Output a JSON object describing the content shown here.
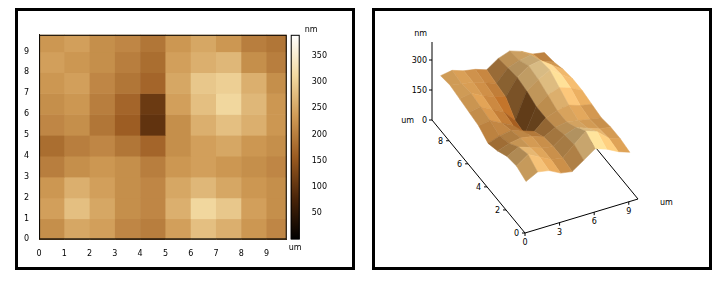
{
  "chart_data": [
    {
      "type": "heatmap",
      "x": [
        0.5,
        1.5,
        2.5,
        3.5,
        4.5,
        5.5,
        6.5,
        7.5,
        8.5,
        9.5
      ],
      "y": [
        0.5,
        1.5,
        2.5,
        3.5,
        4.5,
        5.5,
        6.5,
        7.5,
        8.5,
        9.5
      ],
      "z": [
        [
          220,
          250,
          240,
          210,
          200,
          240,
          280,
          260,
          230,
          210
        ],
        [
          240,
          280,
          250,
          220,
          210,
          260,
          310,
          290,
          240,
          220
        ],
        [
          230,
          260,
          240,
          220,
          210,
          250,
          270,
          250,
          230,
          220
        ],
        [
          200,
          220,
          230,
          220,
          200,
          230,
          240,
          230,
          220,
          210
        ],
        [
          180,
          200,
          210,
          190,
          170,
          220,
          240,
          250,
          230,
          220
        ],
        [
          210,
          220,
          190,
          160,
          100,
          220,
          260,
          280,
          260,
          230
        ],
        [
          220,
          230,
          200,
          170,
          110,
          240,
          280,
          310,
          270,
          230
        ],
        [
          230,
          240,
          210,
          190,
          170,
          250,
          290,
          300,
          260,
          220
        ],
        [
          240,
          230,
          220,
          200,
          180,
          240,
          260,
          270,
          220,
          200
        ],
        [
          230,
          240,
          220,
          210,
          190,
          230,
          250,
          230,
          200,
          190
        ]
      ],
      "xlim": [
        0,
        9.8
      ],
      "ylim": [
        0,
        9.8
      ],
      "xticks": [
        0,
        1,
        2,
        3,
        4,
        5,
        6,
        7,
        8,
        9
      ],
      "yticks": [
        0,
        1,
        2,
        3,
        4,
        5,
        6,
        7,
        8,
        9
      ],
      "x_label": "um",
      "colorbar_range": [
        0,
        390
      ],
      "colorbar_ticks": [
        50,
        100,
        150,
        200,
        250,
        300,
        350
      ],
      "colorbar_label": "nm"
    },
    {
      "type": "surface",
      "x": [
        0.5,
        1.5,
        2.5,
        3.5,
        4.5,
        5.5,
        6.5,
        7.5,
        8.5,
        9.5
      ],
      "y": [
        0.5,
        1.5,
        2.5,
        3.5,
        4.5,
        5.5,
        6.5,
        7.5,
        8.5,
        9.5
      ],
      "z": [
        [
          220,
          250,
          240,
          210,
          200,
          240,
          280,
          260,
          230,
          210
        ],
        [
          240,
          280,
          250,
          220,
          210,
          260,
          310,
          290,
          240,
          220
        ],
        [
          230,
          260,
          240,
          220,
          210,
          250,
          270,
          250,
          230,
          220
        ],
        [
          200,
          220,
          230,
          220,
          200,
          230,
          240,
          230,
          220,
          210
        ],
        [
          180,
          200,
          210,
          190,
          170,
          220,
          240,
          250,
          230,
          220
        ],
        [
          210,
          220,
          190,
          160,
          100,
          220,
          260,
          280,
          260,
          230
        ],
        [
          220,
          230,
          200,
          170,
          110,
          240,
          280,
          310,
          270,
          230
        ],
        [
          230,
          240,
          210,
          190,
          170,
          250,
          290,
          300,
          260,
          220
        ],
        [
          240,
          230,
          220,
          200,
          180,
          240,
          260,
          270,
          220,
          200
        ],
        [
          230,
          240,
          220,
          210,
          190,
          230,
          250,
          230,
          200,
          190
        ]
      ],
      "xlim": [
        0,
        9.8
      ],
      "ylim": [
        0,
        9.8
      ],
      "zlim": [
        0,
        390
      ],
      "xticks": [
        0,
        3,
        6,
        9
      ],
      "yticks": [
        0,
        2,
        4,
        6,
        8
      ],
      "zticks": [
        0,
        150,
        300
      ],
      "x_label": "um",
      "y_label": "um",
      "z_label": "nm"
    }
  ]
}
